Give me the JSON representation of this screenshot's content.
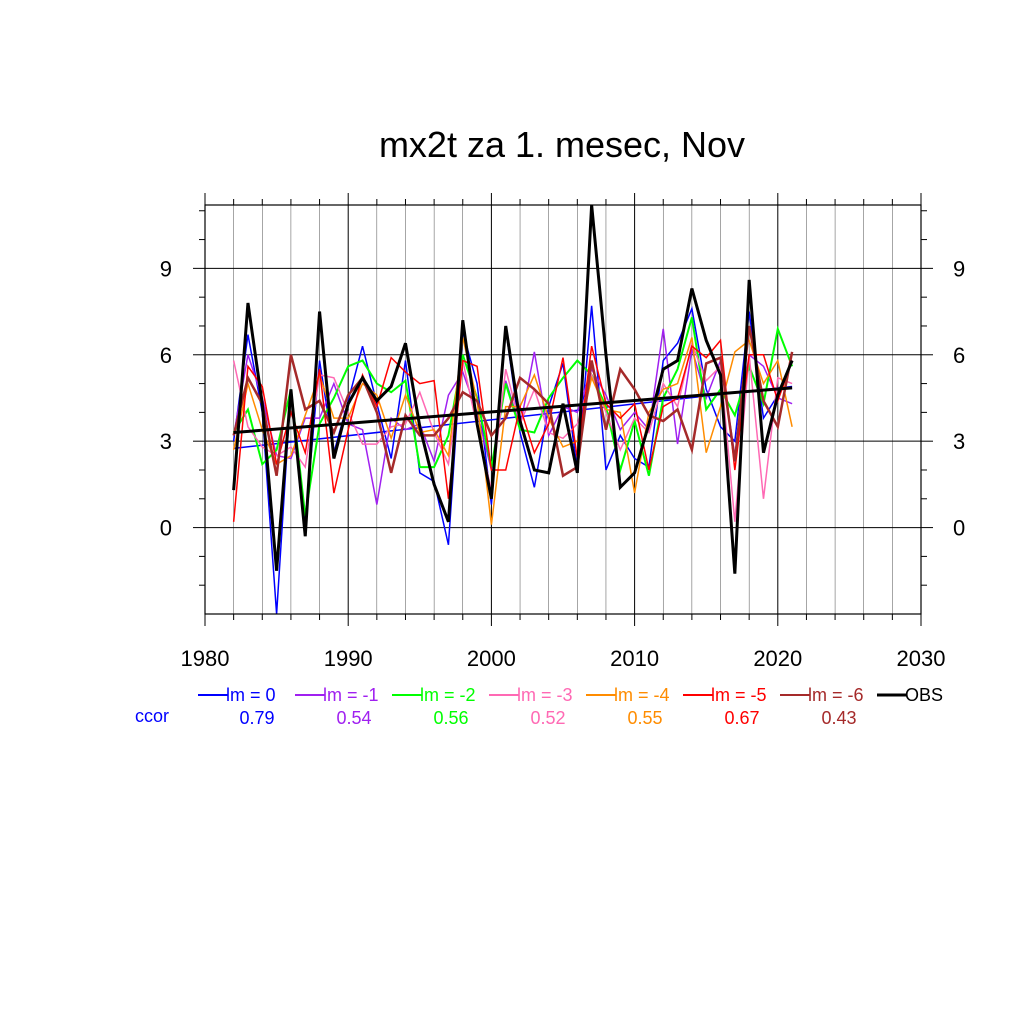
{
  "chart_data": {
    "type": "line",
    "title": "mx2t za 1. mesec, Nov",
    "xlim": [
      1980,
      2030
    ],
    "ylim": [
      -3,
      11.2
    ],
    "x_ticks": [
      "1980",
      "1990",
      "2000",
      "2010",
      "2020",
      "2030"
    ],
    "y_ticks": [
      "0",
      "3",
      "6",
      "9"
    ],
    "grid": true,
    "legend_position": "bottom",
    "ccor_label": "ccor",
    "x": [
      1982,
      1983,
      1984,
      1985,
      1986,
      1987,
      1988,
      1989,
      1990,
      1991,
      1992,
      1993,
      1994,
      1995,
      1996,
      1997,
      1998,
      1999,
      2000,
      2001,
      2002,
      2003,
      2004,
      2005,
      2006,
      2007,
      2008,
      2009,
      2010,
      2011,
      2012,
      2013,
      2014,
      2015,
      2016,
      2017,
      2018,
      2019,
      2020,
      2021
    ],
    "series": [
      {
        "name": "lm = 0",
        "ccor": "0.79",
        "color": "#0000ff",
        "width": 1.5,
        "trend": [
          2.75,
          4.9
        ],
        "values": [
          3.0,
          6.7,
          4.0,
          -3.0,
          4.8,
          0.2,
          5.8,
          2.6,
          4.4,
          6.3,
          4.3,
          2.4,
          5.8,
          1.9,
          1.6,
          -0.6,
          6.8,
          5.0,
          0.8,
          6.9,
          3.3,
          1.4,
          4.2,
          5.7,
          2.0,
          7.7,
          2.0,
          3.2,
          2.4,
          2.1,
          5.8,
          6.4,
          7.6,
          4.8,
          3.5,
          3.0,
          7.5,
          3.8,
          4.6,
          5.8
        ]
      },
      {
        "name": "lm = -1",
        "ccor": "0.54",
        "color": "#a020f0",
        "width": 1.5,
        "values": [
          3.2,
          6.0,
          4.5,
          2.5,
          2.4,
          3.8,
          3.8,
          5.0,
          3.6,
          3.4,
          0.8,
          3.8,
          3.4,
          3.6,
          2.3,
          4.6,
          5.4,
          4.0,
          2.0,
          5.1,
          3.5,
          6.1,
          3.2,
          4.2,
          4.0,
          5.5,
          4.6,
          3.4,
          4.0,
          3.4,
          6.9,
          2.9,
          6.2,
          4.5,
          5.8,
          2.5,
          6.0,
          5.6,
          4.5,
          4.3
        ]
      },
      {
        "name": "lm = -2",
        "ccor": "0.56",
        "color": "#00ff00",
        "width": 2,
        "values": [
          3.3,
          4.1,
          2.2,
          2.7,
          4.8,
          0.4,
          3.6,
          4.5,
          5.6,
          5.8,
          5.0,
          4.7,
          5.1,
          2.1,
          2.1,
          3.2,
          6.0,
          4.5,
          2.1,
          5.0,
          3.4,
          3.3,
          4.5,
          5.2,
          5.8,
          5.3,
          4.2,
          2.0,
          3.7,
          1.8,
          4.5,
          5.5,
          7.3,
          4.1,
          4.8,
          3.9,
          5.6,
          4.3,
          6.9,
          5.6
        ]
      },
      {
        "name": "lm = -3",
        "ccor": "0.52",
        "color": "#ff69b4",
        "width": 1.5,
        "values": [
          5.8,
          3.5,
          2.8,
          2.5,
          2.8,
          2.1,
          5.3,
          5.2,
          4.0,
          2.9,
          2.9,
          3.5,
          3.6,
          4.7,
          3.3,
          2.2,
          5.8,
          3.5,
          1.3,
          5.5,
          3.6,
          4.8,
          3.3,
          3.1,
          3.6,
          5.3,
          4.0,
          2.7,
          3.8,
          3.3,
          5.0,
          4.2,
          6.4,
          5.1,
          5.6,
          0.2,
          6.0,
          1.0,
          5.2,
          5.0
        ]
      },
      {
        "name": "lm = -4",
        "ccor": "0.55",
        "color": "#ff8c00",
        "width": 1.5,
        "values": [
          2.7,
          5.0,
          3.4,
          2.2,
          2.5,
          3.9,
          5.3,
          3.8,
          3.8,
          5.0,
          4.6,
          3.1,
          4.6,
          3.3,
          3.4,
          2.5,
          6.6,
          4.4,
          0.1,
          4.2,
          4.2,
          5.3,
          3.8,
          2.8,
          3.0,
          5.2,
          4.1,
          4.0,
          1.2,
          4.0,
          4.8,
          5.0,
          6.6,
          2.6,
          4.2,
          6.1,
          6.5,
          5.0,
          5.8,
          3.5
        ]
      },
      {
        "name": "lm = -5",
        "ccor": "0.67",
        "color": "#ff0000",
        "width": 1.5,
        "values": [
          0.2,
          5.6,
          4.9,
          2.2,
          4.0,
          2.6,
          5.5,
          1.2,
          3.4,
          5.3,
          4.2,
          5.9,
          5.4,
          5.0,
          5.1,
          1.0,
          5.8,
          5.6,
          2.0,
          2.0,
          4.2,
          2.6,
          3.6,
          5.9,
          2.4,
          6.3,
          4.3,
          3.8,
          4.3,
          2.0,
          4.2,
          4.5,
          6.3,
          5.9,
          6.5,
          2.0,
          6.0,
          6.0,
          4.4,
          5.8
        ]
      },
      {
        "name": "lm = -6",
        "ccor": "0.43",
        "color": "#a52a2a",
        "width": 2.5,
        "values": [
          3.2,
          5.2,
          4.3,
          1.8,
          6.0,
          4.1,
          4.4,
          3.3,
          4.6,
          5.2,
          4.0,
          1.9,
          3.9,
          3.2,
          3.2,
          3.8,
          4.7,
          4.4,
          3.2,
          3.8,
          5.2,
          4.8,
          4.3,
          1.8,
          2.1,
          5.8,
          3.4,
          5.5,
          4.8,
          3.9,
          3.7,
          4.1,
          2.7,
          5.7,
          5.9,
          2.3,
          7.0,
          4.4,
          3.5,
          6.1
        ]
      },
      {
        "name": "OBS",
        "ccor": "",
        "color": "#000000",
        "width": 3,
        "trend": [
          3.3,
          4.85
        ],
        "values": [
          1.3,
          7.8,
          4.3,
          -1.5,
          4.8,
          -0.3,
          7.5,
          2.4,
          4.3,
          5.2,
          4.4,
          4.9,
          6.4,
          3.5,
          1.5,
          0.2,
          7.2,
          3.6,
          1.0,
          7.0,
          3.7,
          2.0,
          1.9,
          4.3,
          1.9,
          11.2,
          6.0,
          1.4,
          1.9,
          3.6,
          5.5,
          5.8,
          8.3,
          6.5,
          5.3,
          -1.6,
          8.6,
          2.6,
          4.6,
          5.8
        ]
      }
    ]
  }
}
